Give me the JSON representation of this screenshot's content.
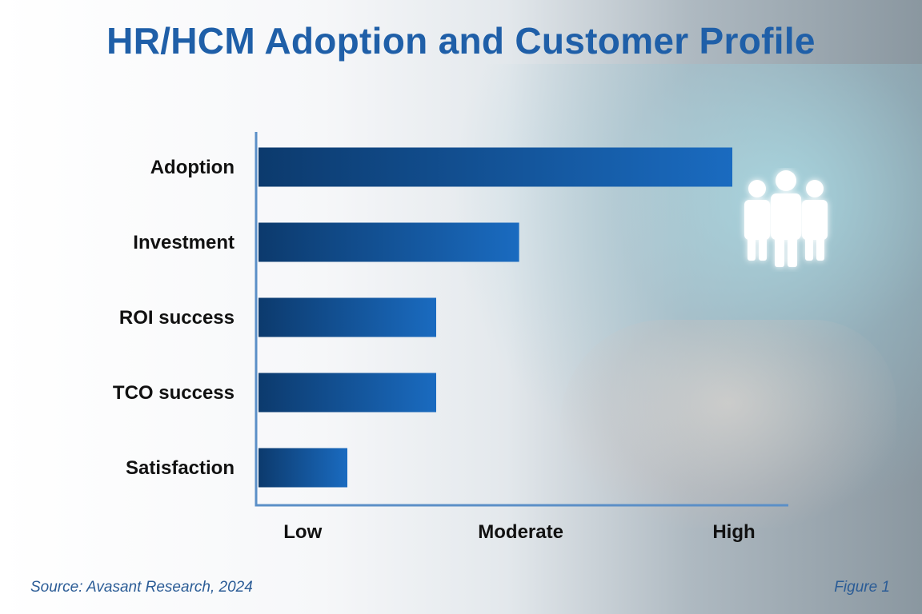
{
  "title": "HR/HCM Adoption and Customer Profile",
  "source": "Source: Avasant Research, 2024",
  "figure_label": "Figure 1",
  "colors": {
    "bar_dark": "#0c3a6d",
    "bar_light": "#1a6bc0",
    "axis": "#5b8fc7",
    "title": "#1f5fa8"
  },
  "chart_data": {
    "type": "bar",
    "orientation": "horizontal",
    "title": "HR/HCM Adoption and Customer Profile",
    "categories": [
      "Adoption",
      "Investment",
      "ROI success",
      "TCO success",
      "Satisfaction"
    ],
    "values": [
      2.0,
      1.1,
      0.75,
      0.75,
      0.375
    ],
    "x_ticks": [
      {
        "value": 0.18,
        "label": "Low"
      },
      {
        "value": 1.1,
        "label": "Moderate"
      },
      {
        "value": 2.0,
        "label": "High"
      }
    ],
    "xlim": [
      0,
      2.25
    ],
    "xlabel": "",
    "ylabel": ""
  }
}
